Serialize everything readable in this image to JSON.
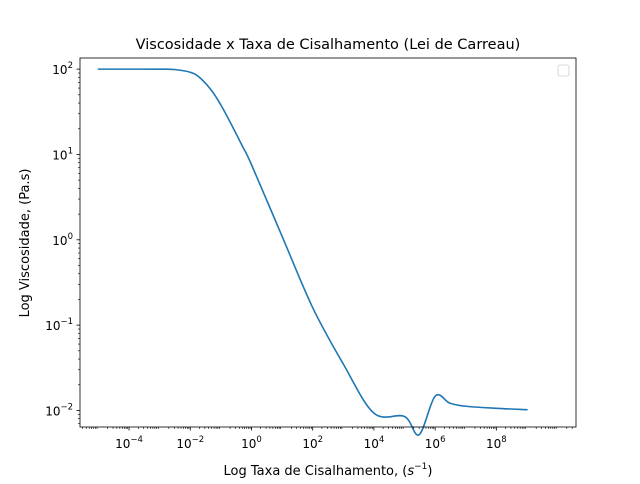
{
  "chart_data": {
    "type": "line",
    "title": "Viscosidade x Taxa de Cisalhamento (Lei de Carreau)",
    "xlabel": "Log Taxa de Cisalhamento, (",
    "xlabel_unit_base": "s",
    "xlabel_unit_exp": "−1",
    "xlabel_close": ")",
    "ylabel": "Log Viscosidade, (Pa.s)",
    "xscale": "log",
    "yscale": "log",
    "xlim": [
      2.5e-06,
      40000000000
    ],
    "ylim": [
      0.0064,
      135
    ],
    "grid": false,
    "legend": {
      "placement": "top-right",
      "entries": []
    },
    "x_ticks": [
      {
        "value": 0.0001,
        "base": "10",
        "exp": "−4"
      },
      {
        "value": 0.01,
        "base": "10",
        "exp": "−2"
      },
      {
        "value": 1,
        "base": "10",
        "exp": "0"
      },
      {
        "value": 100,
        "base": "10",
        "exp": "2"
      },
      {
        "value": 10000,
        "base": "10",
        "exp": "4"
      },
      {
        "value": 1000000,
        "base": "10",
        "exp": "6"
      },
      {
        "value": 100000000,
        "base": "10",
        "exp": "8"
      }
    ],
    "y_ticks": [
      {
        "value": 0.01,
        "base": "10",
        "exp": "−2"
      },
      {
        "value": 0.1,
        "base": "10",
        "exp": "−1"
      },
      {
        "value": 1,
        "base": "10",
        "exp": "0"
      },
      {
        "value": 10,
        "base": "10",
        "exp": "1"
      },
      {
        "value": 100,
        "base": "10",
        "exp": "2"
      }
    ],
    "series": [
      {
        "color": "#1f77b4",
        "x": [
          1e-05,
          0.0001,
          0.001,
          0.003,
          0.01,
          0.02,
          0.05,
          0.1,
          0.2,
          0.5,
          1,
          10,
          100,
          1000,
          10000,
          100000,
          300000,
          1000000,
          3000000,
          10000000,
          100000000,
          1000000000
        ],
        "y": [
          100,
          100,
          99.9,
          99,
          92,
          80,
          56,
          38,
          24,
          12.6,
          7.6,
          1.1,
          0.16,
          0.035,
          0.0093,
          0.0085,
          0.0052,
          0.0147,
          0.0122,
          0.0112,
          0.0106,
          0.0102
        ]
      }
    ]
  }
}
